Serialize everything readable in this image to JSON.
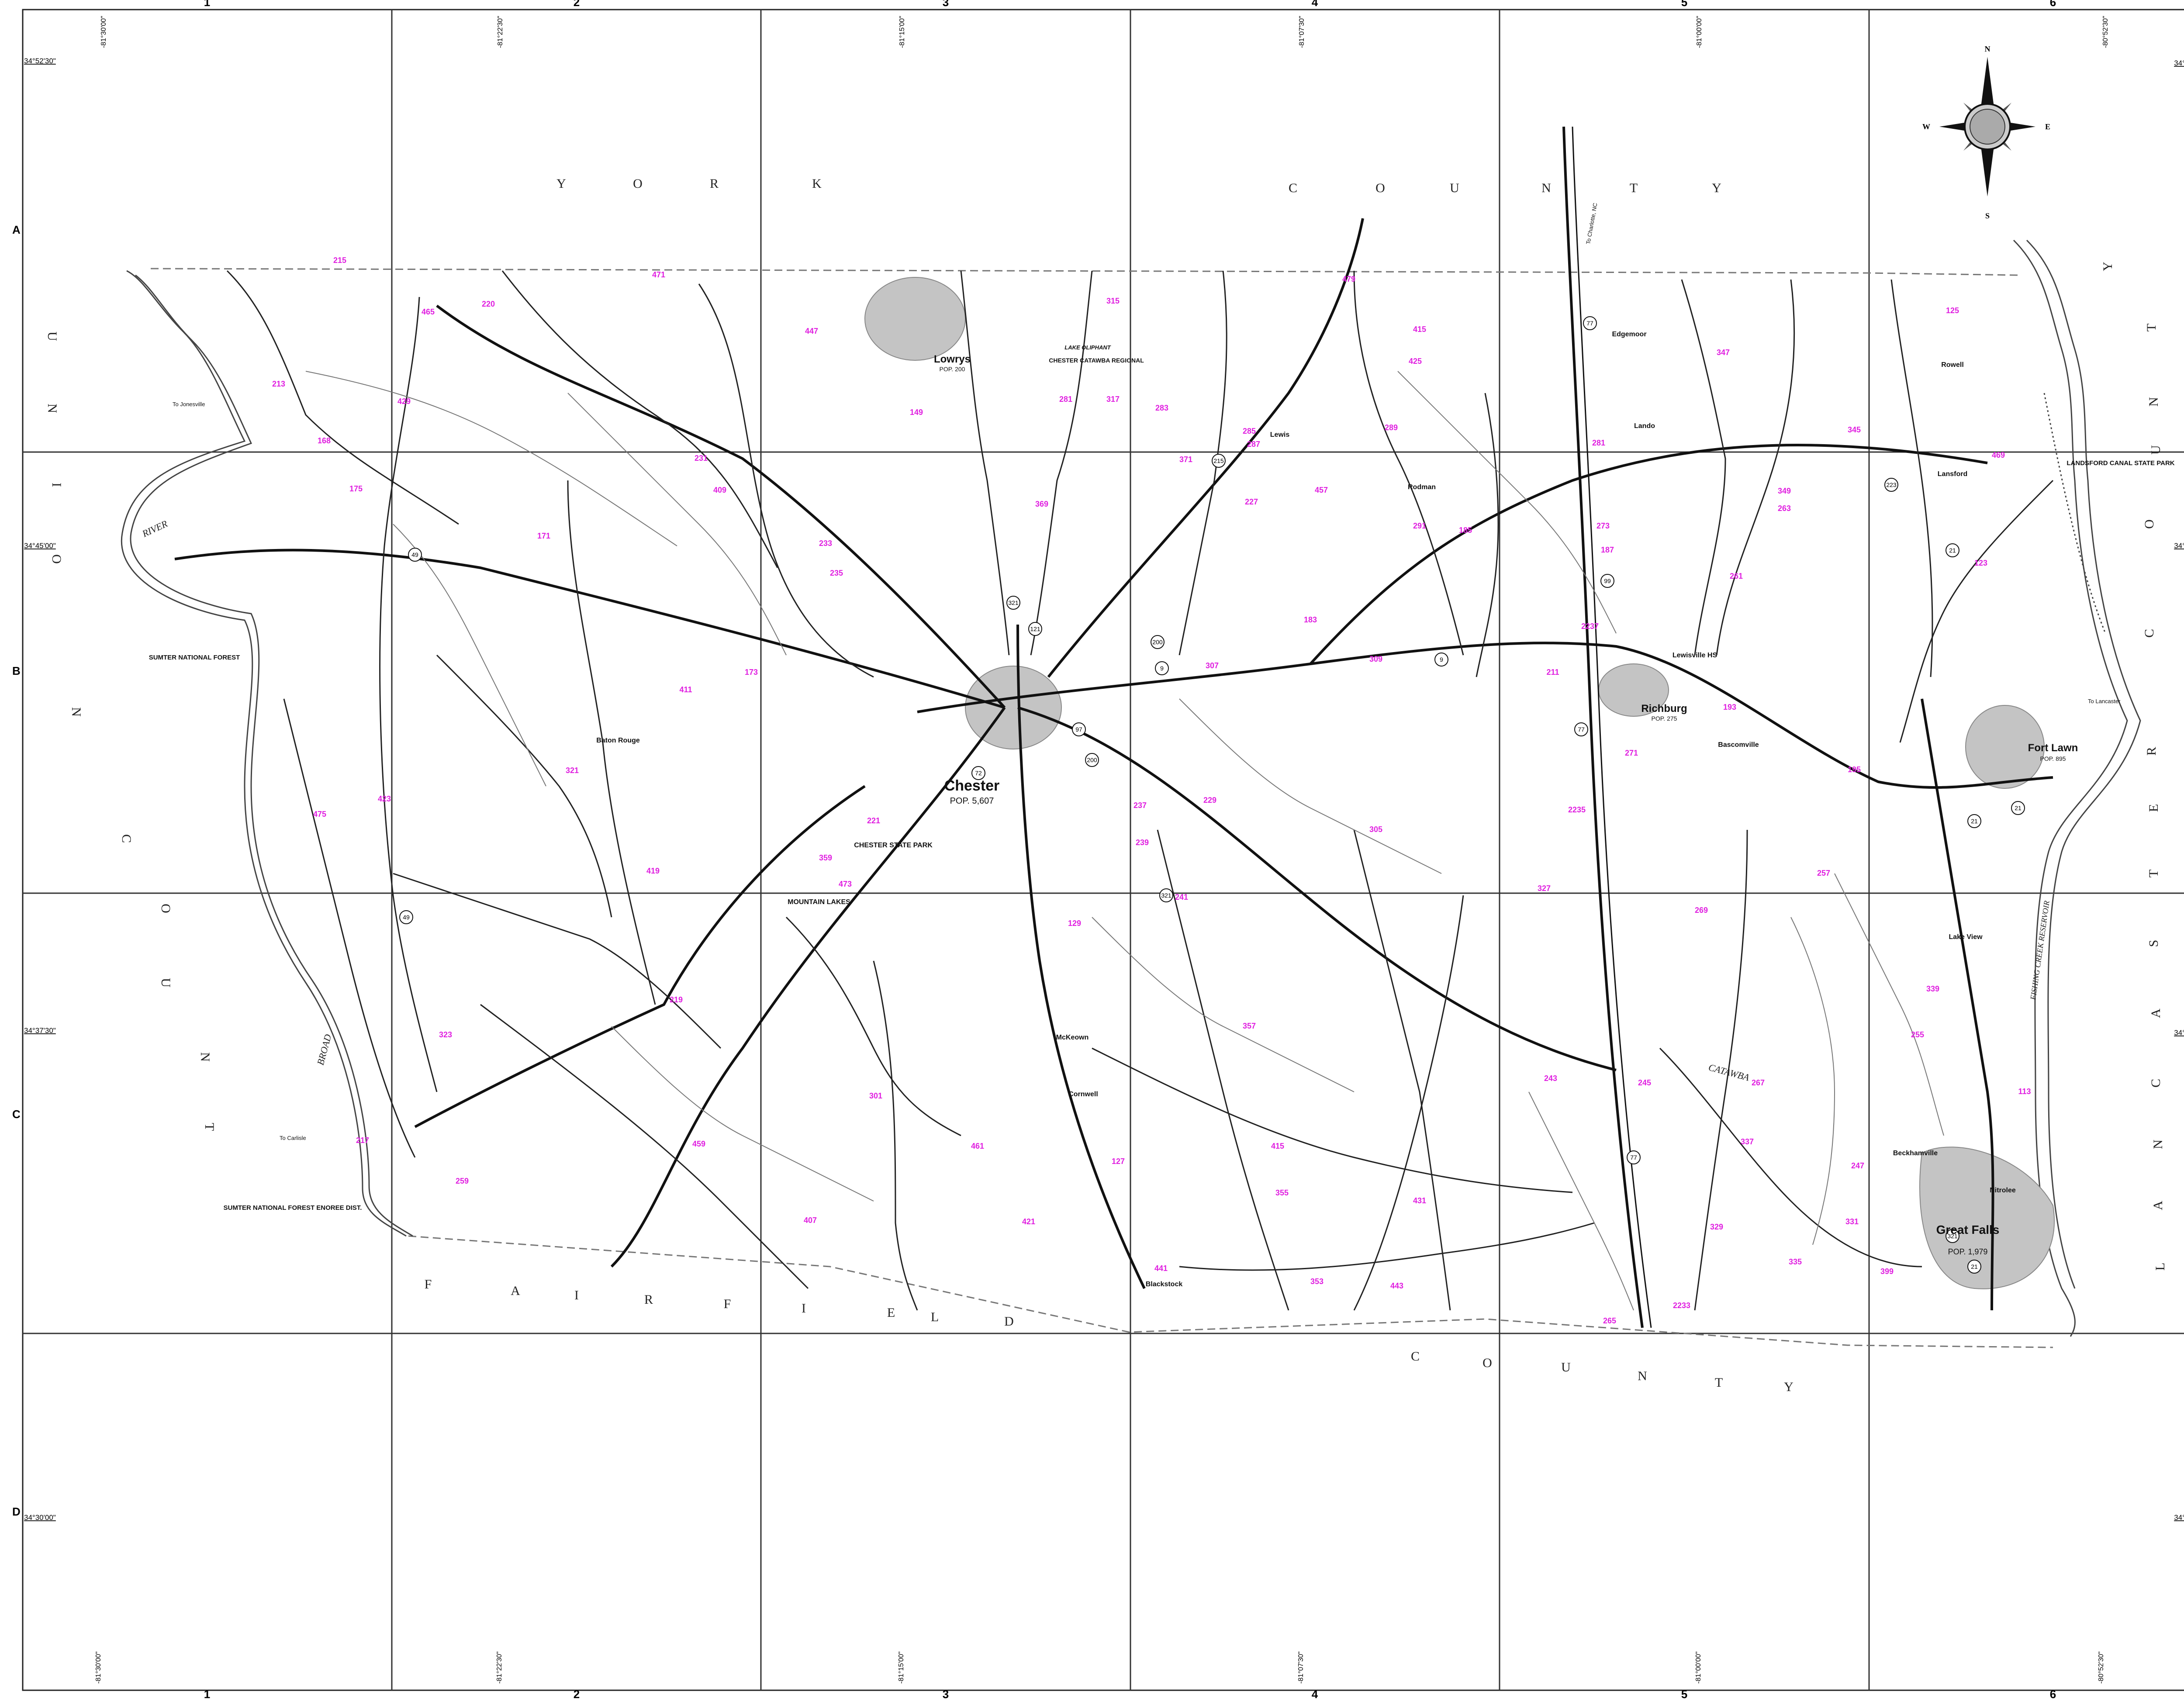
{
  "columns": [
    "1",
    "2",
    "3",
    "4",
    "5",
    "6"
  ],
  "rows": [
    "A",
    "B",
    "C",
    "D"
  ],
  "longitudes": [
    "-81°30'00\"",
    "-81°22'30\"",
    "-81°15'00\"",
    "-81°07'30\"",
    "-81°00'00\"",
    "-80°52'30\""
  ],
  "latitudes": [
    "34°52'30\"",
    "34°45'00\"",
    "34°37'30\"",
    "34°30'00\""
  ],
  "compass": {
    "n": "N",
    "s": "S",
    "e": "E",
    "w": "W"
  },
  "county_letters": {
    "york": [
      "Y",
      "O",
      "R",
      "K",
      "C",
      "O",
      "U",
      "N",
      "T",
      "Y"
    ],
    "union": [
      "U",
      "N",
      "I",
      "O",
      "N",
      "C",
      "O",
      "U",
      "N",
      "T",
      "Y"
    ],
    "fairfield": [
      "F",
      "A",
      "I",
      "R",
      "F",
      "I",
      "E",
      "L",
      "D",
      "C",
      "O",
      "U",
      "N",
      "T",
      "Y"
    ],
    "lancaster": [
      "L",
      "A",
      "N",
      "C",
      "A",
      "S",
      "T",
      "E",
      "R",
      "C",
      "O",
      "U",
      "N",
      "T",
      "Y"
    ]
  },
  "towns": {
    "chester": {
      "name": "Chester",
      "pop": "POP. 5,607"
    },
    "lowrys": {
      "name": "Lowrys",
      "pop": "POP. 200"
    },
    "richburg": {
      "name": "Richburg",
      "pop": "POP. 275"
    },
    "fort_lawn": {
      "name": "Fort Lawn",
      "pop": "POP. 895"
    },
    "great_falls": {
      "name": "Great Falls",
      "pop": "POP. 1,979"
    }
  },
  "places": {
    "lando": "Lando",
    "edgemoor": "Edgemoor",
    "rodman": "Rodman",
    "lewis": "Lewis",
    "lewisville_hs": "Lewisville HS",
    "bascomville": "Bascomville",
    "baton_rouge": "Baton Rouge",
    "mckeown": "McKeown",
    "cornwell": "Cornwell",
    "blackstock": "Blackstock",
    "lansford": "Lansford",
    "rowell": "Rowell",
    "lake_view": "Lake View",
    "beckhamville": "Beckhamville",
    "nitrolee": "Nitrolee",
    "chester_catawba": "CHESTER CATAWBA REGIONAL",
    "chester_state_park": "CHESTER STATE PARK",
    "mountain_lakes": "MOUNTAIN LAKES",
    "landsford": "LANDSFORD CANAL STATE PARK",
    "sumter_nf": "SUMTER NATIONAL FOREST",
    "sumter_enoree": "SUMTER NATIONAL FOREST ENOREE DIST.",
    "lake_oliphant": "LAKE OLIPHANT"
  },
  "water": {
    "broad_river": "BROAD",
    "river": "RIVER",
    "catawba": "CATAWBA",
    "fishing_creek": "FISHING CREEK RESERVOIR"
  },
  "to_labels": {
    "jonesville": "To Jonesville",
    "lancaster": "To Lancaster",
    "carlisle": "To Carlisle",
    "charlotte": "To Charlotte, NC"
  },
  "routes": [
    "321",
    "72",
    "9",
    "97",
    "99",
    "909",
    "77",
    "21",
    "223",
    "121",
    "215",
    "901",
    "200",
    "49"
  ],
  "magenta_labels": [
    "215",
    "465",
    "220",
    "471",
    "447",
    "315",
    "479",
    "415",
    "425",
    "347",
    "125",
    "213",
    "168",
    "175",
    "429",
    "231",
    "409",
    "149",
    "281",
    "317",
    "283",
    "285",
    "287",
    "227",
    "457",
    "289",
    "291",
    "281",
    "345",
    "469",
    "171",
    "233",
    "235",
    "369",
    "371",
    "183",
    "307",
    "309",
    "185",
    "187",
    "273",
    "349",
    "263",
    "123",
    "261",
    "173",
    "411",
    "321",
    "475",
    "423",
    "221",
    "359",
    "473",
    "237",
    "239",
    "305",
    "2235",
    "2237",
    "211",
    "271",
    "193",
    "195",
    "257",
    "269",
    "327",
    "229",
    "129",
    "241",
    "419",
    "323",
    "219",
    "301",
    "339",
    "357",
    "415",
    "431",
    "245",
    "243",
    "255",
    "267",
    "337",
    "113",
    "247",
    "459",
    "461",
    "127",
    "355",
    "421",
    "329",
    "331",
    "335",
    "399",
    "407",
    "441",
    "353",
    "443",
    "265",
    "2233",
    "259",
    "217"
  ],
  "colors": {
    "magenta": "#e020e0",
    "road": "#111111",
    "creek": "#666666",
    "town": "#bdbdbd",
    "grid": "#333333"
  }
}
